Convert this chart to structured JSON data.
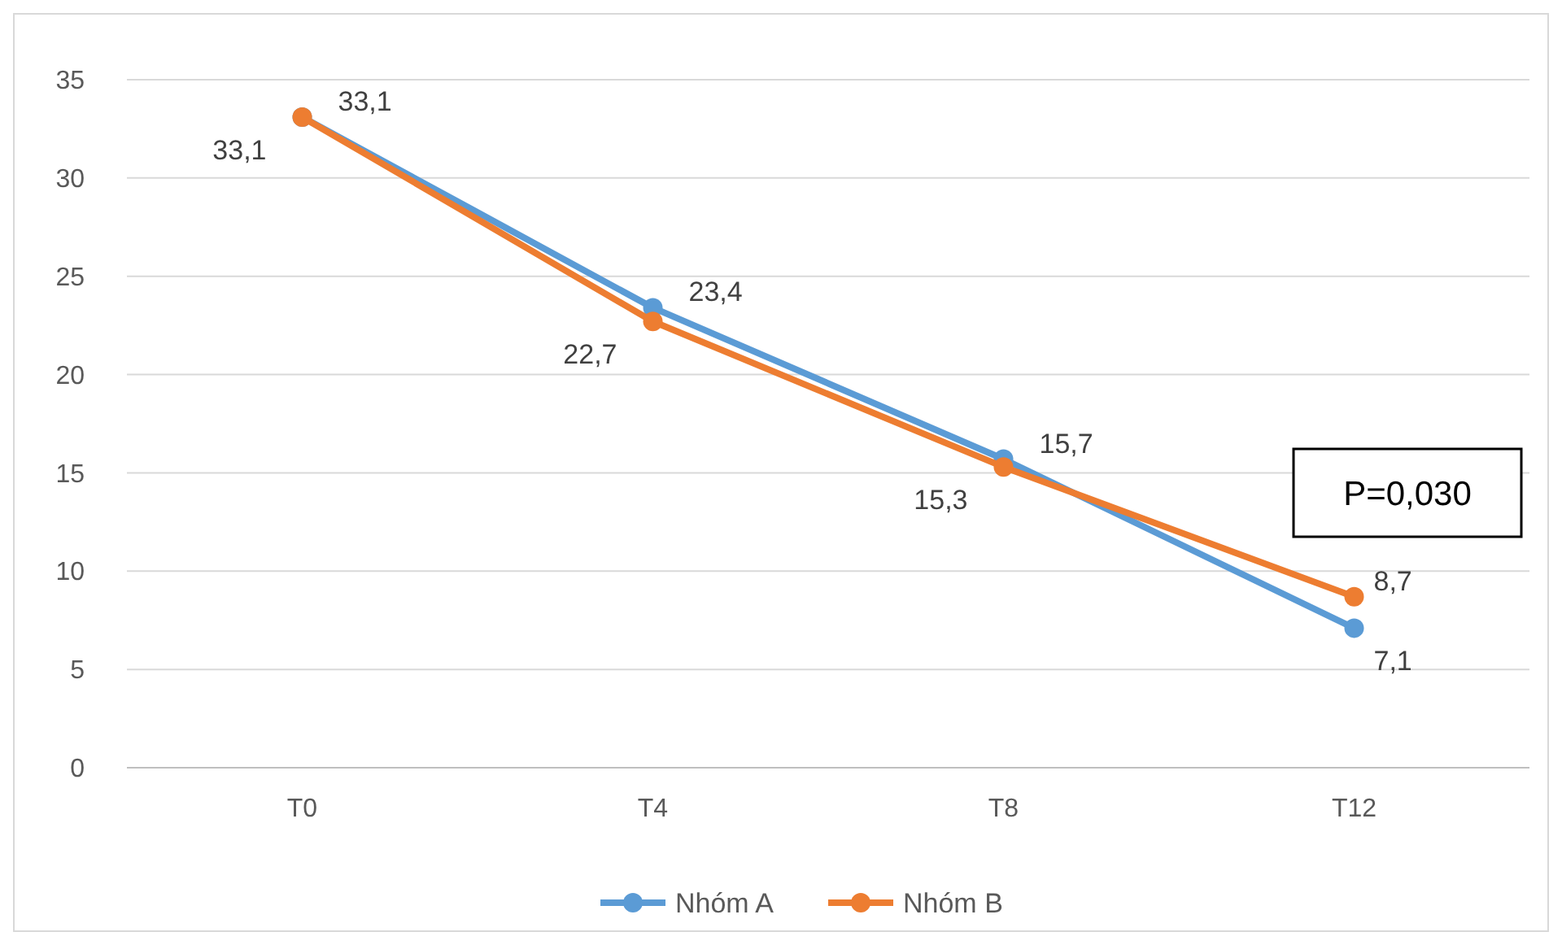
{
  "chart_data": {
    "type": "line",
    "categories": [
      "T0",
      "T4",
      "T8",
      "T12"
    ],
    "series": [
      {
        "name": "Nhóm A",
        "color": "#5b9bd5",
        "values": [
          33.1,
          23.4,
          15.7,
          7.1
        ],
        "value_labels": [
          "33,1",
          "23,4",
          "15,7",
          "7,1"
        ]
      },
      {
        "name": "Nhóm B",
        "color": "#ed7d31",
        "values": [
          33.1,
          22.7,
          15.3,
          8.7
        ],
        "value_labels": [
          "33,1",
          "22,7",
          "15,3",
          "8,7"
        ]
      }
    ],
    "ylim": [
      0,
      35
    ],
    "yticks": [
      0,
      5,
      10,
      15,
      20,
      25,
      30,
      35
    ],
    "grid": "y",
    "legend": "bottom",
    "marker": "circle",
    "line_style": "solid",
    "annotations": [
      "P=0,030"
    ]
  }
}
